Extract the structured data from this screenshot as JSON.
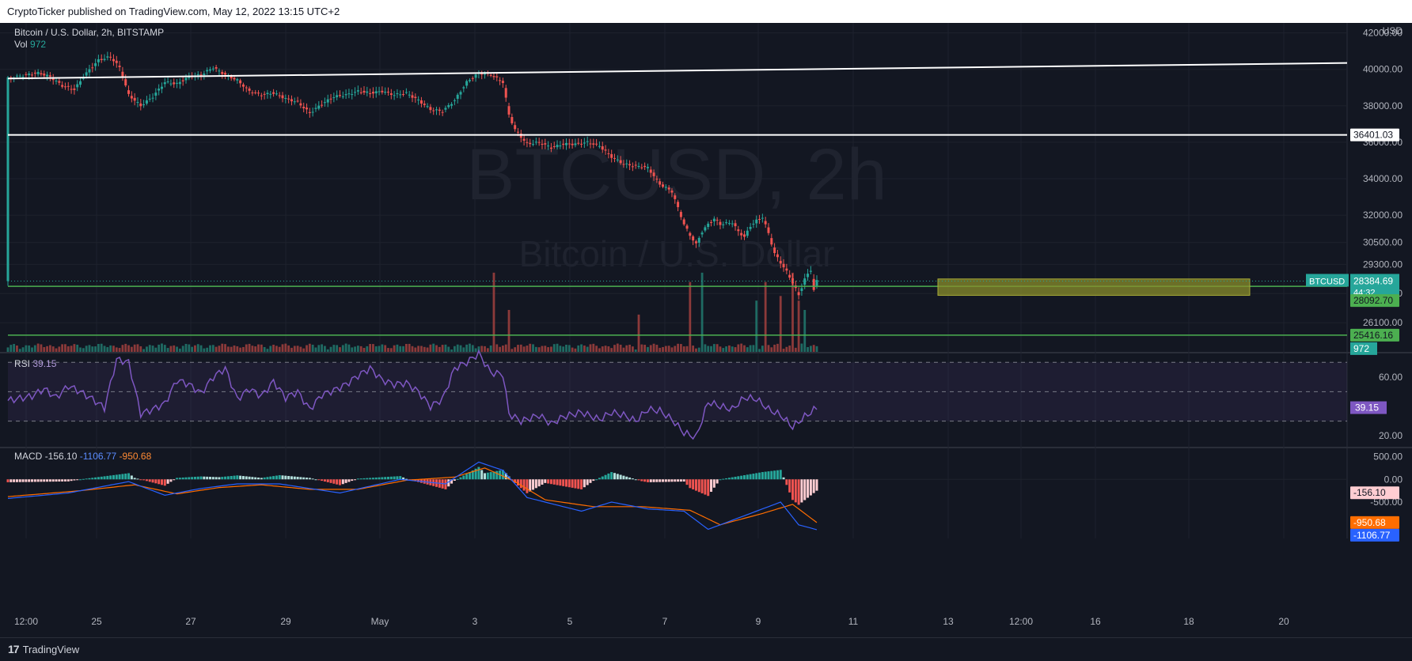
{
  "header": {
    "published": "CryptoTicker published on TradingView.com, May 12, 2022 13:15 UTC+2"
  },
  "footer": {
    "logo_text": "TradingView"
  },
  "chart_data": [
    {
      "type": "candlestick",
      "title": "Bitcoin / U.S. Dollar, 2h, BITSTAMP",
      "watermark": {
        "symbol": "BTCUSD, 2h",
        "name": "Bitcoin / U.S. Dollar"
      },
      "currency": "USD",
      "ylim": [
        24500,
        42200
      ],
      "y_ticks": [
        "42000.00",
        "40000.00",
        "38000.00",
        "36000.00",
        "34000.00",
        "32000.00",
        "30500.00",
        "29300.00",
        "27700.00",
        "26100.00"
      ],
      "x_ticks": [
        "12:00",
        "25",
        "27",
        "29",
        "May",
        "3",
        "5",
        "7",
        "9",
        "11",
        "13",
        "12:00",
        "16",
        "18",
        "20"
      ],
      "close_path": [
        [
          0,
          39500
        ],
        [
          6,
          39700
        ],
        [
          10,
          39800
        ],
        [
          14,
          39600
        ],
        [
          18,
          39100
        ],
        [
          22,
          38900
        ],
        [
          26,
          39800
        ],
        [
          30,
          40500
        ],
        [
          34,
          40700
        ],
        [
          37,
          40100
        ],
        [
          40,
          38600
        ],
        [
          44,
          38000
        ],
        [
          48,
          38500
        ],
        [
          52,
          39300
        ],
        [
          56,
          39200
        ],
        [
          60,
          39600
        ],
        [
          64,
          39700
        ],
        [
          68,
          40100
        ],
        [
          72,
          39700
        ],
        [
          76,
          39400
        ],
        [
          80,
          38800
        ],
        [
          84,
          38600
        ],
        [
          88,
          38700
        ],
        [
          92,
          38400
        ],
        [
          96,
          38200
        ],
        [
          100,
          37600
        ],
        [
          104,
          38100
        ],
        [
          108,
          38500
        ],
        [
          112,
          38600
        ],
        [
          116,
          38800
        ],
        [
          120,
          38700
        ],
        [
          124,
          38800
        ],
        [
          128,
          38600
        ],
        [
          132,
          38700
        ],
        [
          136,
          38300
        ],
        [
          140,
          37800
        ],
        [
          144,
          37700
        ],
        [
          148,
          38300
        ],
        [
          152,
          39300
        ],
        [
          156,
          39800
        ],
        [
          160,
          39700
        ],
        [
          164,
          39300
        ],
        [
          166,
          37500
        ],
        [
          168,
          36700
        ],
        [
          172,
          35900
        ],
        [
          176,
          36000
        ],
        [
          180,
          35700
        ],
        [
          184,
          35900
        ],
        [
          188,
          35900
        ],
        [
          192,
          36000
        ],
        [
          196,
          35800
        ],
        [
          200,
          35200
        ],
        [
          204,
          34800
        ],
        [
          208,
          34700
        ],
        [
          212,
          34600
        ],
        [
          216,
          33700
        ],
        [
          220,
          33300
        ],
        [
          222,
          32400
        ],
        [
          224,
          31500
        ],
        [
          226,
          30900
        ],
        [
          228,
          30400
        ],
        [
          230,
          31100
        ],
        [
          232,
          31500
        ],
        [
          234,
          31800
        ],
        [
          236,
          31500
        ],
        [
          240,
          31600
        ],
        [
          242,
          31100
        ],
        [
          244,
          30800
        ],
        [
          246,
          31400
        ],
        [
          248,
          31700
        ],
        [
          250,
          31900
        ],
        [
          252,
          31000
        ],
        [
          254,
          29900
        ],
        [
          256,
          29400
        ],
        [
          258,
          28900
        ],
        [
          260,
          28300
        ],
        [
          262,
          27600
        ],
        [
          264,
          28500
        ],
        [
          266,
          29000
        ],
        [
          267,
          27900
        ],
        [
          268,
          28384.69
        ]
      ],
      "last_index": 268,
      "lines": [
        {
          "kind": "trendline",
          "y_start": 39500,
          "y_end": 40350
        },
        {
          "kind": "horizontal",
          "value": 36401.03,
          "label": "36401.03"
        },
        {
          "kind": "horizontal",
          "value": 28092.7,
          "label": "28092.70"
        },
        {
          "kind": "horizontal",
          "value": 25416.16,
          "label": "25416.16"
        }
      ],
      "zone": {
        "low": 27600,
        "high": 28500
      },
      "last_price": {
        "symbol": "BTCUSD",
        "value": "28384.69",
        "countdown": "44:32"
      },
      "volume": {
        "label": "Vol",
        "value": "972",
        "spikes": [
          [
            161,
            0.85
          ],
          [
            166,
            0.45
          ],
          [
            209,
            0.4
          ],
          [
            226,
            0.75
          ],
          [
            230,
            0.85
          ],
          [
            248,
            0.55
          ],
          [
            251,
            0.75
          ],
          [
            256,
            0.6
          ],
          [
            260,
            0.85
          ],
          [
            262,
            0.55
          ],
          [
            264,
            0.45
          ]
        ]
      },
      "colors": {
        "up": "#26a69a",
        "down": "#ef5350",
        "grid": "#2a2e39",
        "zone": "#8a8e2b",
        "level": "#4caf50"
      }
    },
    {
      "type": "line",
      "title": "RSI",
      "value": "39.15",
      "ylim": [
        12,
        75
      ],
      "y_ticks": [
        "60.00",
        "20.00"
      ],
      "bands": [
        70,
        50,
        30
      ],
      "path": [
        [
          0,
          44
        ],
        [
          8,
          47
        ],
        [
          12,
          52
        ],
        [
          16,
          46
        ],
        [
          20,
          54
        ],
        [
          24,
          50
        ],
        [
          28,
          45
        ],
        [
          32,
          39
        ],
        [
          36,
          72
        ],
        [
          40,
          70
        ],
        [
          44,
          35
        ],
        [
          48,
          38
        ],
        [
          52,
          42
        ],
        [
          56,
          58
        ],
        [
          60,
          55
        ],
        [
          64,
          49
        ],
        [
          68,
          60
        ],
        [
          72,
          66
        ],
        [
          76,
          45
        ],
        [
          80,
          52
        ],
        [
          84,
          47
        ],
        [
          88,
          57
        ],
        [
          92,
          46
        ],
        [
          96,
          50
        ],
        [
          100,
          38
        ],
        [
          104,
          48
        ],
        [
          108,
          51
        ],
        [
          112,
          55
        ],
        [
          116,
          61
        ],
        [
          120,
          66
        ],
        [
          124,
          58
        ],
        [
          128,
          55
        ],
        [
          132,
          56
        ],
        [
          136,
          50
        ],
        [
          140,
          40
        ],
        [
          144,
          45
        ],
        [
          148,
          66
        ],
        [
          152,
          70
        ],
        [
          156,
          76
        ],
        [
          160,
          63
        ],
        [
          164,
          62
        ],
        [
          166,
          35
        ],
        [
          170,
          30
        ],
        [
          176,
          34
        ],
        [
          180,
          28
        ],
        [
          184,
          33
        ],
        [
          190,
          36
        ],
        [
          196,
          31
        ],
        [
          200,
          36
        ],
        [
          204,
          34
        ],
        [
          208,
          30
        ],
        [
          212,
          38
        ],
        [
          216,
          37
        ],
        [
          220,
          31
        ],
        [
          224,
          22
        ],
        [
          228,
          19
        ],
        [
          232,
          43
        ],
        [
          236,
          40
        ],
        [
          240,
          38
        ],
        [
          244,
          46
        ],
        [
          248,
          45
        ],
        [
          252,
          38
        ],
        [
          256,
          34
        ],
        [
          260,
          26
        ],
        [
          264,
          33
        ],
        [
          268,
          39
        ]
      ],
      "color": "#7e57c2"
    },
    {
      "type": "bar",
      "title": "MACD",
      "values": [
        "-156.10",
        "-1106.77",
        "-950.68"
      ],
      "ylim": [
        -1300,
        700
      ],
      "y_ticks": [
        "500.00",
        "0.00",
        "-500.00"
      ],
      "macd_path": [
        [
          0,
          -420
        ],
        [
          20,
          -300
        ],
        [
          40,
          -50
        ],
        [
          52,
          -350
        ],
        [
          64,
          -200
        ],
        [
          76,
          -100
        ],
        [
          90,
          -100
        ],
        [
          110,
          -300
        ],
        [
          130,
          0
        ],
        [
          145,
          -100
        ],
        [
          156,
          380
        ],
        [
          164,
          200
        ],
        [
          172,
          -400
        ],
        [
          190,
          -700
        ],
        [
          200,
          -500
        ],
        [
          212,
          -650
        ],
        [
          224,
          -700
        ],
        [
          232,
          -1100
        ],
        [
          244,
          -800
        ],
        [
          256,
          -500
        ],
        [
          262,
          -1000
        ],
        [
          268,
          -1106.77
        ]
      ],
      "signal_path": [
        [
          0,
          -380
        ],
        [
          24,
          -250
        ],
        [
          42,
          -120
        ],
        [
          56,
          -320
        ],
        [
          70,
          -180
        ],
        [
          84,
          -120
        ],
        [
          100,
          -220
        ],
        [
          116,
          -220
        ],
        [
          132,
          -20
        ],
        [
          148,
          50
        ],
        [
          158,
          250
        ],
        [
          168,
          -50
        ],
        [
          178,
          -450
        ],
        [
          194,
          -600
        ],
        [
          210,
          -600
        ],
        [
          226,
          -680
        ],
        [
          236,
          -1000
        ],
        [
          250,
          -750
        ],
        [
          260,
          -550
        ],
        [
          268,
          -950.68
        ]
      ],
      "colors": {
        "macd": "#2962ff",
        "signal": "#ff6d00",
        "hist_up": "#26a69a",
        "hist_down": "#ef5350"
      }
    }
  ]
}
